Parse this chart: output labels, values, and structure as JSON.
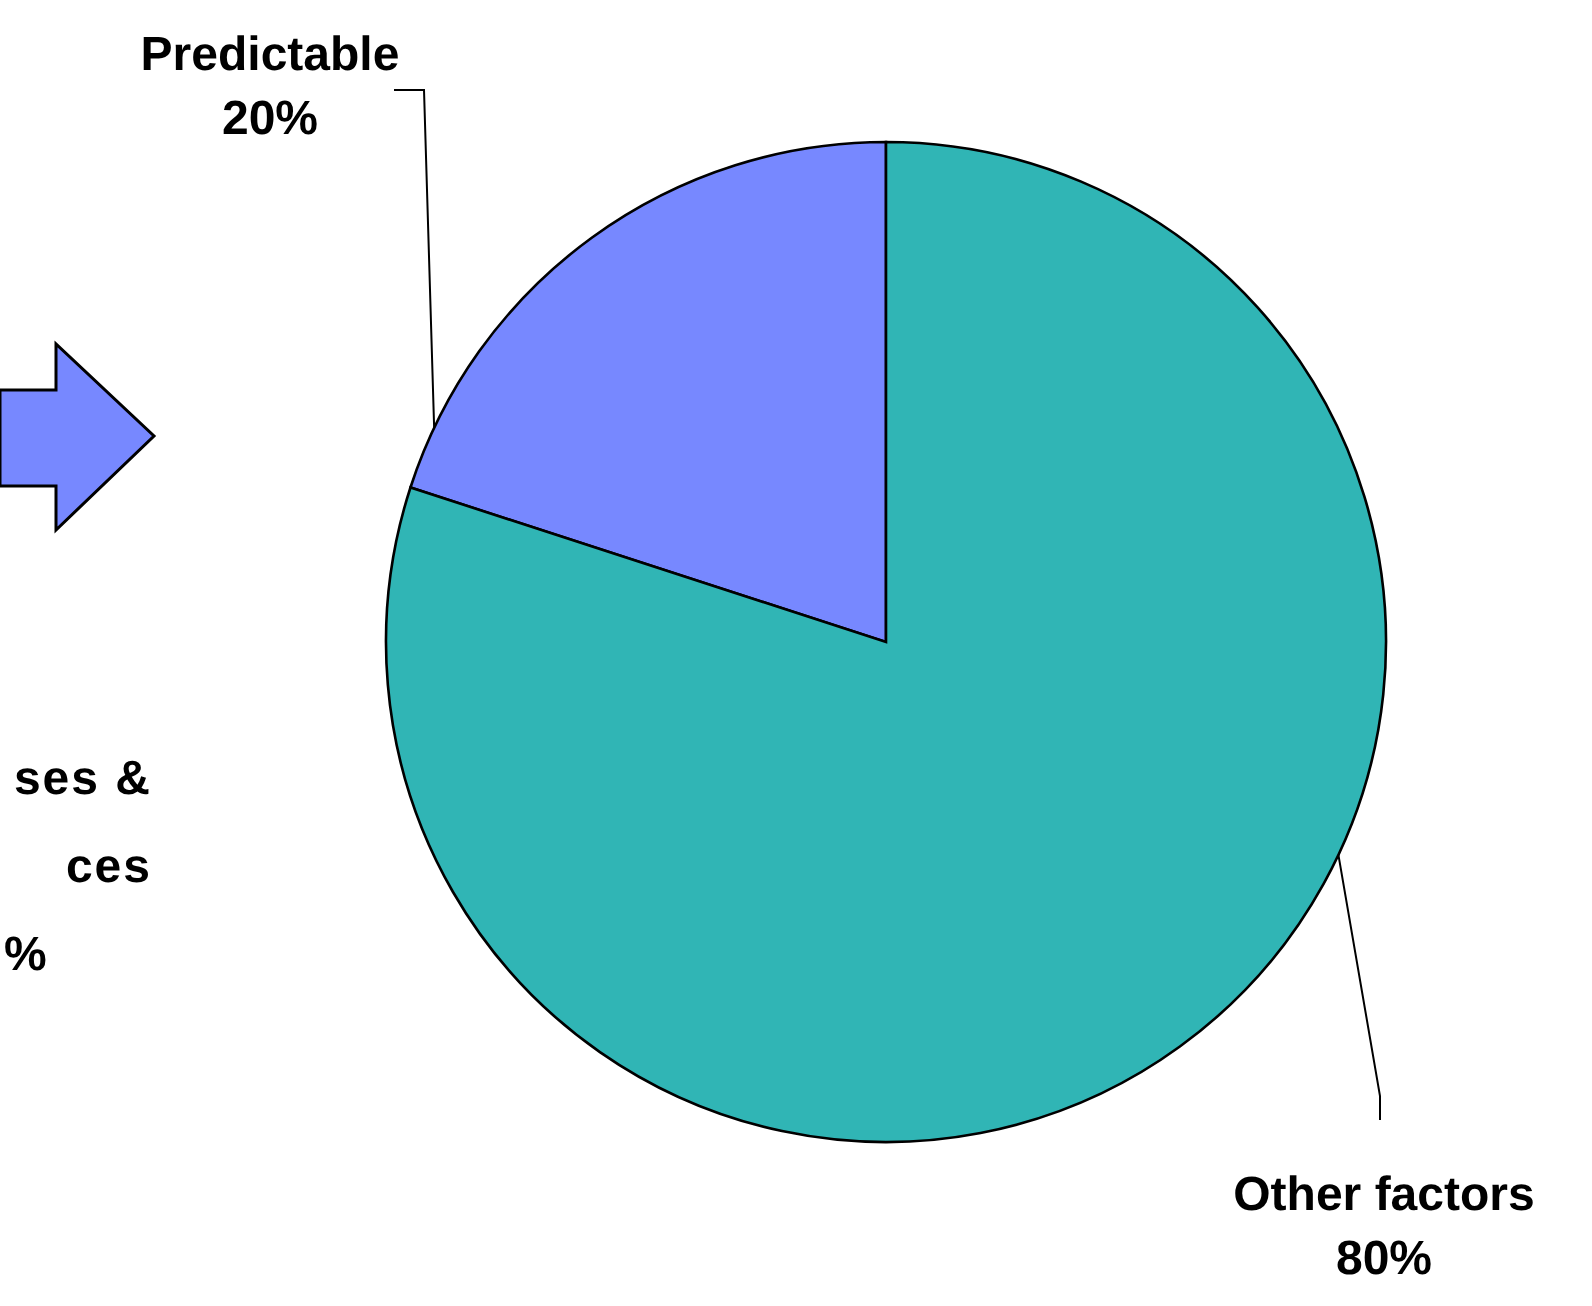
{
  "chart_data": {
    "type": "pie",
    "categories": [
      "Predictable",
      "Other factors"
    ],
    "values": [
      20,
      80
    ],
    "colors": [
      "#7788ff",
      "#30b5b5"
    ],
    "value_labels": [
      "20%",
      "80%"
    ],
    "annotations": [
      "ses &",
      "ces",
      "%"
    ]
  }
}
